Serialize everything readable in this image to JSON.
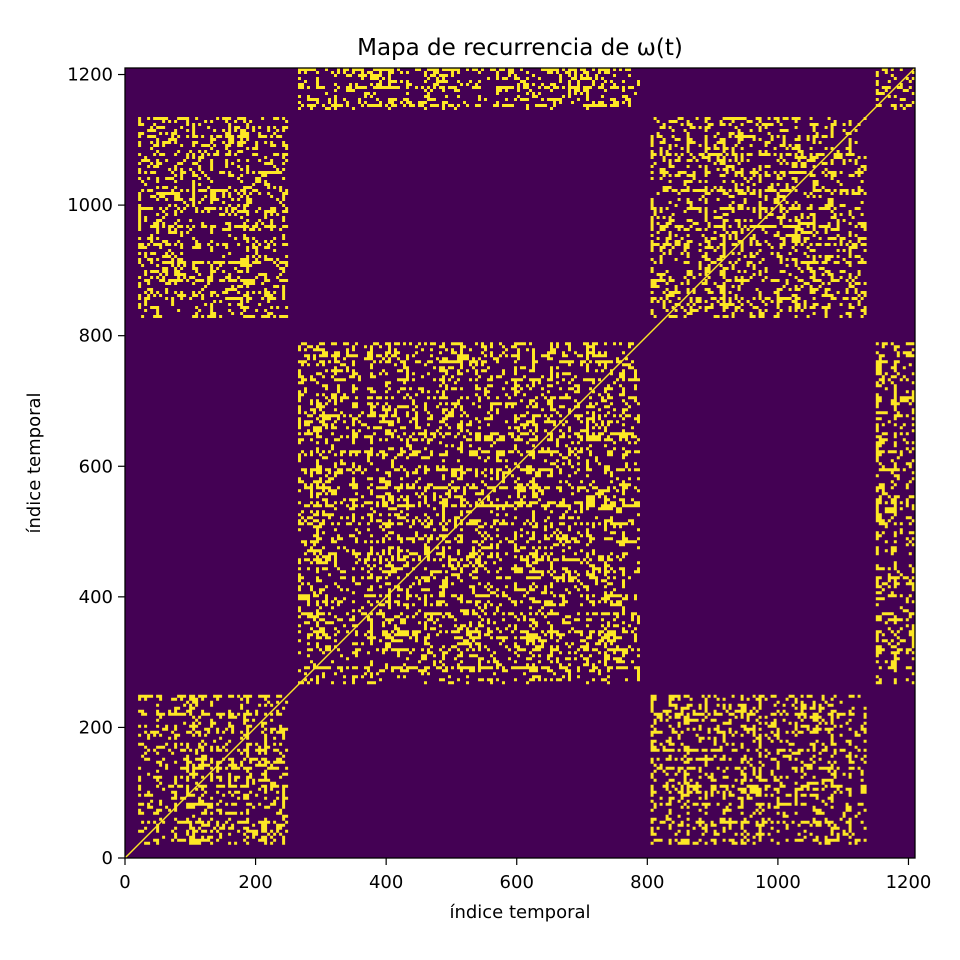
{
  "chart_data": {
    "type": "heatmap",
    "subtype": "recurrence-plot",
    "title": "Mapa de recurrencia de ω(t)",
    "xlabel": "índice temporal",
    "ylabel": "índice temporal",
    "xlim": [
      0,
      1210
    ],
    "ylim": [
      0,
      1210
    ],
    "xticks": [
      0,
      200,
      400,
      600,
      800,
      1000,
      1200
    ],
    "yticks": [
      0,
      200,
      400,
      600,
      800,
      1000,
      1200
    ],
    "colormap": "viridis",
    "values": [
      0,
      1
    ],
    "colors": {
      "background": "#440154",
      "recurrent": "#fde725"
    },
    "diagonal": true,
    "blocks": [
      {
        "x_range": [
          20,
          250
        ],
        "y_range": [
          20,
          250
        ]
      },
      {
        "x_range": [
          20,
          250
        ],
        "y_range": [
          825,
          1135
        ]
      },
      {
        "x_range": [
          265,
          790
        ],
        "y_range": [
          265,
          790
        ]
      },
      {
        "x_range": [
          265,
          790
        ],
        "y_range": [
          1145,
          1210
        ]
      },
      {
        "x_range": [
          805,
          1140
        ],
        "y_range": [
          20,
          250
        ]
      },
      {
        "x_range": [
          805,
          1140
        ],
        "y_range": [
          825,
          1135
        ]
      },
      {
        "x_range": [
          1150,
          1210
        ],
        "y_range": [
          265,
          790
        ]
      },
      {
        "x_range": [
          1150,
          1210
        ],
        "y_range": [
          1145,
          1210
        ]
      }
    ]
  }
}
